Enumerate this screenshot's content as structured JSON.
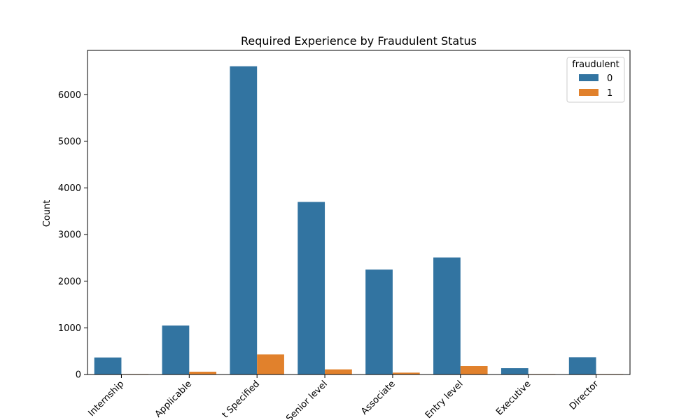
{
  "chart_data": {
    "type": "bar",
    "title": "Required Experience by Fraudulent Status",
    "xlabel": "",
    "ylabel": "Count",
    "categories": [
      "Internship",
      "Applicable",
      "t Specified",
      "Senior level",
      "Associate",
      "Entry level",
      "Executive",
      "Director"
    ],
    "series": [
      {
        "name": "0",
        "color": "#3274a1",
        "values": [
          365,
          1050,
          6610,
          3700,
          2250,
          2510,
          135,
          370
        ]
      },
      {
        "name": "1",
        "color": "#e1812c",
        "values": [
          10,
          60,
          430,
          110,
          40,
          180,
          10,
          10
        ]
      }
    ],
    "ylim": [
      0,
      6950
    ],
    "yticks": [
      0,
      1000,
      2000,
      3000,
      4000,
      5000,
      6000
    ],
    "legend": {
      "title": "fraudulent",
      "position": "top-right"
    },
    "grid": false
  }
}
